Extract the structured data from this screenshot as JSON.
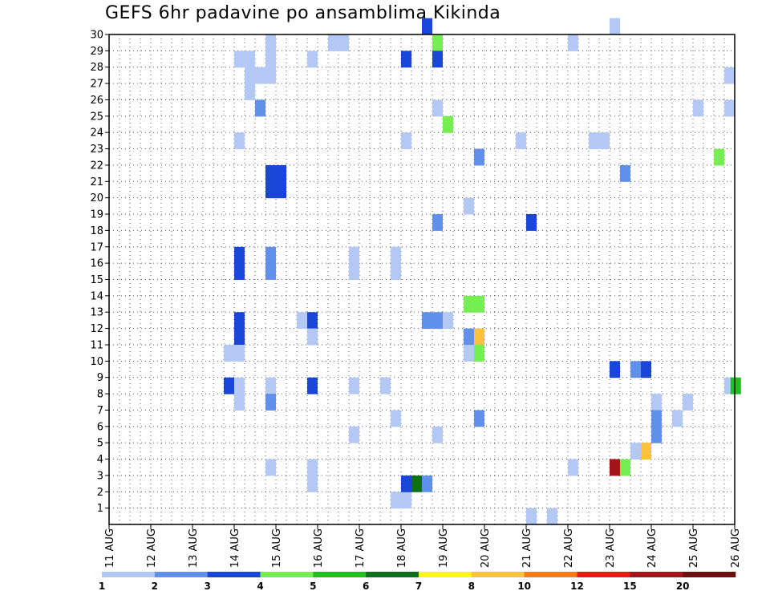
{
  "chart_data": {
    "type": "heatmap",
    "title": "GEFS 6hr padavine po ansamblima Kikinda",
    "x_labels": [
      "11 AUG",
      "12 AUG",
      "13 AUG",
      "14 AUG",
      "15 AUG",
      "16 AUG",
      "17 AUG",
      "18 AUG",
      "19 AUG",
      "20 AUG",
      "21 AUG",
      "22 AUG",
      "23 AUG",
      "24 AUG",
      "25 AUG",
      "26 AUG"
    ],
    "y_labels": [
      "1",
      "2",
      "3",
      "4",
      "5",
      "6",
      "7",
      "8",
      "9",
      "10",
      "11",
      "12",
      "13",
      "14",
      "15",
      "16",
      "17",
      "18",
      "19",
      "20",
      "21",
      "22",
      "23",
      "24",
      "25",
      "26",
      "27",
      "28",
      "29",
      "30"
    ],
    "time_steps": 60,
    "x_range": [
      "11 AUG",
      "26 AUG"
    ],
    "y_range": [
      0.5,
      30.5
    ],
    "grid": true,
    "legend_position": "bottom",
    "legend_thresholds": [
      "1",
      "2",
      "3",
      "4",
      "5",
      "6",
      "7",
      "8",
      "10",
      "12",
      "15",
      "20"
    ],
    "legend_colors": [
      "#b4c8f5",
      "#6090eb",
      "#1a46d8",
      "#74ee50",
      "#1fbf1f",
      "#0d6e1b",
      "#fff51e",
      "#fbc33d",
      "#f87c16",
      "#e41d13",
      "#a3151b",
      "#6e0e0e"
    ],
    "cells": [
      {
        "t": 12,
        "m": 28,
        "c": 0
      },
      {
        "t": 13,
        "m": 28,
        "c": 0
      },
      {
        "t": 13,
        "m": 27,
        "c": 0
      },
      {
        "t": 14,
        "m": 27,
        "c": 0
      },
      {
        "t": 15,
        "m": 27,
        "c": 0
      },
      {
        "t": 13,
        "m": 26,
        "c": 0
      },
      {
        "t": 15,
        "m": 29,
        "c": 0
      },
      {
        "t": 15,
        "m": 28,
        "c": 0
      },
      {
        "t": 19,
        "m": 28,
        "c": 0
      },
      {
        "t": 21,
        "m": 29,
        "c": 0
      },
      {
        "t": 22,
        "m": 29,
        "c": 0
      },
      {
        "t": 14,
        "m": 25,
        "c": 1
      },
      {
        "t": 12,
        "m": 23,
        "c": 0
      },
      {
        "t": 15,
        "m": 21,
        "c": 2
      },
      {
        "t": 15,
        "m": 20,
        "c": 2
      },
      {
        "t": 16,
        "m": 20,
        "c": 2
      },
      {
        "t": 16,
        "m": 21,
        "c": 2
      },
      {
        "t": 12,
        "m": 16,
        "c": 2
      },
      {
        "t": 12,
        "m": 15,
        "c": 2
      },
      {
        "t": 15,
        "m": 16,
        "c": 1
      },
      {
        "t": 15,
        "m": 15,
        "c": 1
      },
      {
        "t": 23,
        "m": 16,
        "c": 0
      },
      {
        "t": 23,
        "m": 15,
        "c": 0
      },
      {
        "t": 27,
        "m": 16,
        "c": 0
      },
      {
        "t": 27,
        "m": 15,
        "c": 0
      },
      {
        "t": 18,
        "m": 12,
        "c": 0
      },
      {
        "t": 19,
        "m": 12,
        "c": 2
      },
      {
        "t": 19,
        "m": 11,
        "c": 0
      },
      {
        "t": 12,
        "m": 12,
        "c": 2
      },
      {
        "t": 12,
        "m": 11,
        "c": 2
      },
      {
        "t": 11,
        "m": 10,
        "c": 0
      },
      {
        "t": 12,
        "m": 10,
        "c": 0
      },
      {
        "t": 11,
        "m": 8,
        "c": 2
      },
      {
        "t": 12,
        "m": 8,
        "c": 0
      },
      {
        "t": 12,
        "m": 7,
        "c": 0
      },
      {
        "t": 15,
        "m": 8,
        "c": 0
      },
      {
        "t": 15,
        "m": 7,
        "c": 1
      },
      {
        "t": 19,
        "m": 8,
        "c": 2
      },
      {
        "t": 23,
        "m": 8,
        "c": 0
      },
      {
        "t": 26,
        "m": 8,
        "c": 0
      },
      {
        "t": 15,
        "m": 3,
        "c": 0
      },
      {
        "t": 19,
        "m": 3,
        "c": 0
      },
      {
        "t": 19,
        "m": 2,
        "c": 0
      },
      {
        "t": 23,
        "m": 5,
        "c": 0
      },
      {
        "t": 27,
        "m": 6,
        "c": 0
      },
      {
        "t": 27,
        "m": 1,
        "c": 0
      },
      {
        "t": 28,
        "m": 1,
        "c": 0
      },
      {
        "t": 28,
        "m": 2,
        "c": 2
      },
      {
        "t": 29,
        "m": 2,
        "c": 5
      },
      {
        "t": 30,
        "m": 2,
        "c": 1
      },
      {
        "t": 30,
        "m": 30,
        "c": 2
      },
      {
        "t": 31,
        "m": 29,
        "c": 3
      },
      {
        "t": 31,
        "m": 28,
        "c": 2
      },
      {
        "t": 28,
        "m": 28,
        "c": 2
      },
      {
        "t": 31,
        "m": 25,
        "c": 0
      },
      {
        "t": 32,
        "m": 24,
        "c": 3
      },
      {
        "t": 28,
        "m": 23,
        "c": 0
      },
      {
        "t": 35,
        "m": 22,
        "c": 1
      },
      {
        "t": 31,
        "m": 18,
        "c": 1
      },
      {
        "t": 34,
        "m": 19,
        "c": 0
      },
      {
        "t": 30,
        "m": 12,
        "c": 1
      },
      {
        "t": 31,
        "m": 12,
        "c": 1
      },
      {
        "t": 32,
        "m": 12,
        "c": 0
      },
      {
        "t": 34,
        "m": 13,
        "c": 3
      },
      {
        "t": 35,
        "m": 13,
        "c": 3
      },
      {
        "t": 34,
        "m": 11,
        "c": 1
      },
      {
        "t": 35,
        "m": 11,
        "c": 7
      },
      {
        "t": 34,
        "m": 10,
        "c": 0
      },
      {
        "t": 35,
        "m": 10,
        "c": 3
      },
      {
        "t": 35,
        "m": 6,
        "c": 1
      },
      {
        "t": 31,
        "m": 5,
        "c": 0
      },
      {
        "t": 39,
        "m": 23,
        "c": 0
      },
      {
        "t": 40,
        "m": 18,
        "c": 2
      },
      {
        "t": 40,
        "m": 0,
        "c": 0
      },
      {
        "t": 42,
        "m": 0,
        "c": 0
      },
      {
        "t": 44,
        "m": 29,
        "c": 0
      },
      {
        "t": 44,
        "m": 3,
        "c": 0
      },
      {
        "t": 46,
        "m": 23,
        "c": 0
      },
      {
        "t": 47,
        "m": 23,
        "c": 0
      },
      {
        "t": 48,
        "m": 30,
        "c": 0
      },
      {
        "t": 49,
        "m": 21,
        "c": 1
      },
      {
        "t": 48,
        "m": 9,
        "c": 2
      },
      {
        "t": 50,
        "m": 9,
        "c": 1
      },
      {
        "t": 51,
        "m": 9,
        "c": 2
      },
      {
        "t": 48,
        "m": 3,
        "c": 10
      },
      {
        "t": 49,
        "m": 3,
        "c": 3
      },
      {
        "t": 50,
        "m": 4,
        "c": 0
      },
      {
        "t": 51,
        "m": 4,
        "c": 7
      },
      {
        "t": 52,
        "m": 7,
        "c": 0
      },
      {
        "t": 52,
        "m": 6,
        "c": 1
      },
      {
        "t": 52,
        "m": 5,
        "c": 1
      },
      {
        "t": 54,
        "m": 6,
        "c": 0
      },
      {
        "t": 55,
        "m": 7,
        "c": 0
      },
      {
        "t": 56,
        "m": 25,
        "c": 0
      },
      {
        "t": 58,
        "m": 22,
        "c": 3
      },
      {
        "t": 59,
        "m": 27,
        "c": 0
      },
      {
        "t": 59,
        "m": 25,
        "c": 0
      },
      {
        "t": 59,
        "m": 8,
        "c": 0
      },
      {
        "t": 59.6,
        "m": 8,
        "c": 4
      }
    ]
  }
}
